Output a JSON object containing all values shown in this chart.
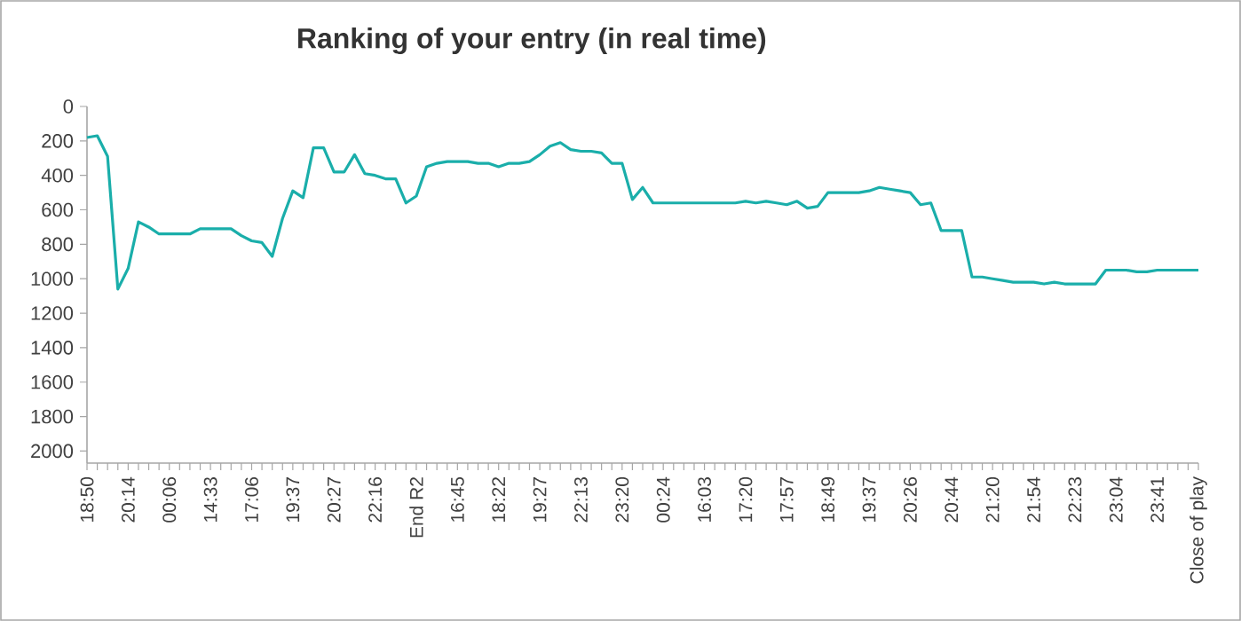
{
  "chart_data": {
    "type": "line",
    "title": "Ranking of your entry (in real time)",
    "categories": [
      "18:50",
      null,
      null,
      null,
      "20:14",
      null,
      null,
      null,
      "00:06",
      null,
      null,
      null,
      "14:33",
      null,
      null,
      null,
      "17:06",
      null,
      null,
      null,
      "19:37",
      null,
      null,
      null,
      "20:27",
      null,
      null,
      null,
      "22:16",
      null,
      null,
      null,
      "End R2",
      null,
      null,
      null,
      "16:45",
      null,
      null,
      null,
      "18:22",
      null,
      null,
      null,
      "19:27",
      null,
      null,
      null,
      "22:13",
      null,
      null,
      null,
      "23:20",
      null,
      null,
      null,
      "00:24",
      null,
      null,
      null,
      "16:03",
      null,
      null,
      null,
      "17:20",
      null,
      null,
      null,
      "17:57",
      null,
      null,
      null,
      "18:49",
      null,
      null,
      null,
      "19:37",
      null,
      null,
      null,
      "20:26",
      null,
      null,
      null,
      "20:44",
      null,
      null,
      null,
      "21:20",
      null,
      null,
      null,
      "21:54",
      null,
      null,
      null,
      "22:23",
      null,
      null,
      null,
      "23:04",
      null,
      null,
      null,
      "23:41",
      null,
      null,
      null,
      "Close of play"
    ],
    "values": [
      180,
      170,
      290,
      1060,
      940,
      670,
      700,
      740,
      740,
      740,
      740,
      710,
      710,
      710,
      710,
      750,
      780,
      790,
      870,
      650,
      490,
      530,
      240,
      240,
      380,
      380,
      280,
      390,
      400,
      420,
      420,
      560,
      520,
      350,
      330,
      320,
      320,
      320,
      330,
      330,
      350,
      330,
      330,
      320,
      280,
      230,
      210,
      250,
      260,
      260,
      270,
      330,
      330,
      540,
      470,
      560,
      560,
      560,
      560,
      560,
      560,
      560,
      560,
      560,
      550,
      560,
      550,
      560,
      570,
      550,
      590,
      580,
      500,
      500,
      500,
      500,
      490,
      470,
      480,
      490,
      500,
      570,
      560,
      720,
      720,
      720,
      990,
      990,
      1000,
      1010,
      1020,
      1020,
      1020,
      1030,
      1020,
      1030,
      1030,
      1030,
      1030,
      950,
      950,
      950,
      960,
      960,
      950,
      950,
      950,
      950,
      950
    ],
    "color": "#1aaeaa",
    "ylim": [
      2070,
      0
    ],
    "yticks": [
      0,
      200,
      400,
      600,
      800,
      1000,
      1200,
      1400,
      1600,
      1800,
      2000
    ],
    "marker": "none",
    "line_style": "solid"
  }
}
